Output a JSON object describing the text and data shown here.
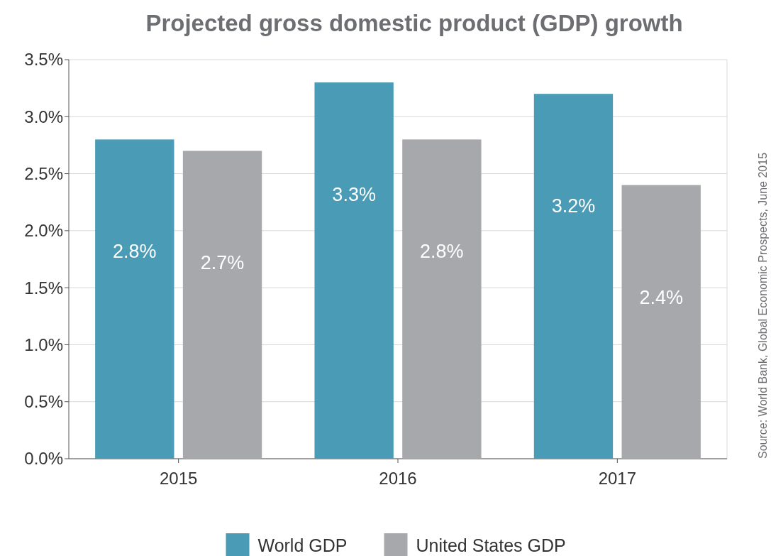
{
  "chart_data": {
    "type": "bar",
    "title": "Projected gross domestic product (GDP) growth",
    "categories": [
      "2015",
      "2016",
      "2017"
    ],
    "series": [
      {
        "name": "World GDP",
        "color": "#4a9bb6",
        "values": [
          2.8,
          3.3,
          3.2
        ],
        "value_labels": [
          "2.8%",
          "3.3%",
          "3.2%"
        ]
      },
      {
        "name": "United States GDP",
        "color": "#a7a8ab",
        "values": [
          2.7,
          2.8,
          2.4
        ],
        "value_labels": [
          "2.7%",
          "2.8%",
          "2.4%"
        ]
      }
    ],
    "ylim": [
      0,
      3.5
    ],
    "yticks": [
      {
        "value": 0,
        "label": "0.0%"
      },
      {
        "value": 0.5,
        "label": "0.5%"
      },
      {
        "value": 1,
        "label": "1.0%"
      },
      {
        "value": 1.5,
        "label": "1.5%"
      },
      {
        "value": 2,
        "label": "2.0%"
      },
      {
        "value": 2.5,
        "label": "2.5%"
      },
      {
        "value": 3,
        "label": "3.0%"
      },
      {
        "value": 3.5,
        "label": "3.5%"
      }
    ],
    "grid": "y",
    "legend": "bottom",
    "annotations": [
      "Source: World Bank, Global Economic Prospects, June 2015"
    ]
  }
}
